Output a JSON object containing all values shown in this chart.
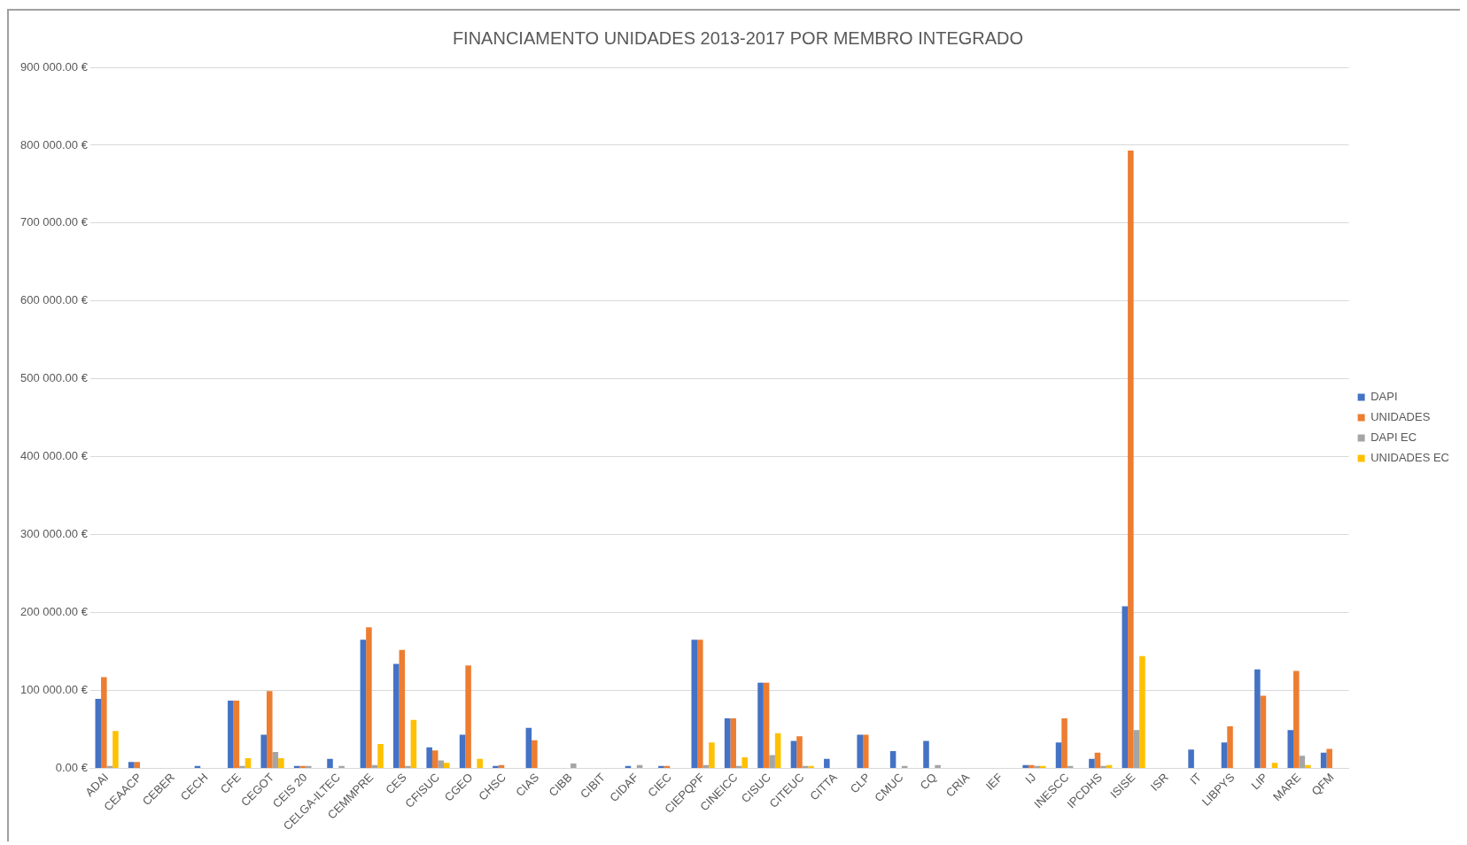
{
  "chart_data": {
    "type": "bar",
    "title": "FINANCIAMENTO UNIDADES 2013-2017 POR MEMBRO INTEGRADO",
    "categories": [
      "ADAI",
      "CEAACP",
      "CEBER",
      "CECH",
      "CFE",
      "CEGOT",
      "CEIS 20",
      "CELGA-ILTEC",
      "CEMMPRE",
      "CES",
      "CFISUC",
      "CGEO",
      "CHSC",
      "CIAS",
      "CIBB",
      "CIBIT",
      "CIDAF",
      "CIEC",
      "CIEPQPF",
      "CINEICC",
      "CISUC",
      "CITEUC",
      "CITTA",
      "CLP",
      "CMUC",
      "CQ",
      "CRIA",
      "IEF",
      "IJ",
      "INESCC",
      "IPCDHS",
      "ISISE",
      "ISR",
      "IT",
      "LIBPYS",
      "LIP",
      "MARE",
      "QFM"
    ],
    "series": [
      {
        "name": "DAPI",
        "color": "#4472c4",
        "values": [
          89000,
          8000,
          0,
          3000,
          87000,
          43000,
          3000,
          12000,
          165000,
          134000,
          27000,
          43000,
          3000,
          52000,
          0,
          0,
          3000,
          3000,
          165000,
          64000,
          110000,
          35000,
          12000,
          43000,
          22000,
          35000,
          0,
          0,
          4000,
          33000,
          12000,
          208000,
          0,
          24000,
          33000,
          127000,
          49000,
          20000
        ]
      },
      {
        "name": "UNIDADES",
        "color": "#ed7d31",
        "values": [
          117000,
          8000,
          0,
          0,
          87000,
          99000,
          3000,
          0,
          181000,
          152000,
          23000,
          132000,
          4000,
          36000,
          0,
          0,
          0,
          3000,
          165000,
          64000,
          110000,
          41000,
          0,
          43000,
          0,
          0,
          0,
          0,
          4000,
          64000,
          20000,
          793000,
          0,
          0,
          54000,
          93000,
          125000,
          25000
        ]
      },
      {
        "name": "DAPI EC",
        "color": "#a5a5a5",
        "values": [
          3000,
          0,
          0,
          0,
          3000,
          21000,
          3000,
          3000,
          4000,
          3000,
          10000,
          0,
          0,
          0,
          6000,
          0,
          4000,
          0,
          4000,
          3000,
          17000,
          3000,
          0,
          0,
          3000,
          4000,
          0,
          0,
          3000,
          3000,
          3000,
          49000,
          0,
          0,
          0,
          0,
          16000,
          0
        ]
      },
      {
        "name": "UNIDADES EC",
        "color": "#ffc000",
        "values": [
          48000,
          0,
          0,
          0,
          13000,
          13000,
          0,
          0,
          31000,
          62000,
          7000,
          12000,
          0,
          0,
          0,
          0,
          0,
          0,
          33000,
          14000,
          45000,
          3000,
          0,
          0,
          0,
          0,
          0,
          0,
          3000,
          0,
          4000,
          144000,
          0,
          0,
          0,
          7000,
          4000,
          0
        ]
      }
    ],
    "ylim": [
      0,
      900000
    ],
    "yticks": [
      {
        "value": 0,
        "label": "0.00 €"
      },
      {
        "value": 100000,
        "label": "100 000.00 €"
      },
      {
        "value": 200000,
        "label": "200 000.00 €"
      },
      {
        "value": 300000,
        "label": "300 000.00 €"
      },
      {
        "value": 400000,
        "label": "400 000.00 €"
      },
      {
        "value": 500000,
        "label": "500 000.00 €"
      },
      {
        "value": 600000,
        "label": "600 000.00 €"
      },
      {
        "value": 700000,
        "label": "700 000.00 €"
      },
      {
        "value": 800000,
        "label": "800 000.00 €"
      },
      {
        "value": 900000,
        "label": "900 000.00 €"
      }
    ],
    "grid": "y",
    "legend": "right"
  }
}
